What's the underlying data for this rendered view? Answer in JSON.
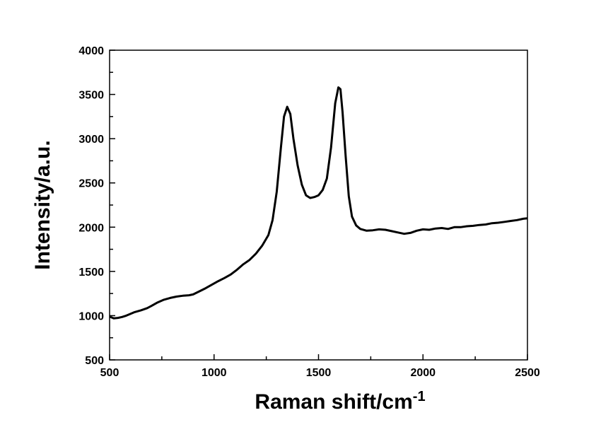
{
  "chart_data": {
    "type": "line",
    "xlabel": "Raman shift/cm",
    "xlabel_superscript": "-1",
    "ylabel": "Intensity/a.u.",
    "xlim": [
      500,
      2500
    ],
    "ylim": [
      500,
      4000
    ],
    "x_ticks": [
      500,
      1000,
      1500,
      2000,
      2500
    ],
    "y_ticks": [
      500,
      1000,
      1500,
      2000,
      2500,
      3000,
      3500,
      4000
    ],
    "grid": false,
    "line_color": "#000000",
    "series": [
      {
        "points": [
          [
            500,
            990
          ],
          [
            520,
            970
          ],
          [
            540,
            975
          ],
          [
            560,
            985
          ],
          [
            580,
            1000
          ],
          [
            600,
            1020
          ],
          [
            620,
            1040
          ],
          [
            650,
            1060
          ],
          [
            680,
            1085
          ],
          [
            700,
            1110
          ],
          [
            730,
            1150
          ],
          [
            760,
            1180
          ],
          [
            790,
            1200
          ],
          [
            820,
            1215
          ],
          [
            850,
            1225
          ],
          [
            880,
            1230
          ],
          [
            900,
            1240
          ],
          [
            930,
            1275
          ],
          [
            960,
            1310
          ],
          [
            990,
            1350
          ],
          [
            1020,
            1390
          ],
          [
            1050,
            1425
          ],
          [
            1080,
            1465
          ],
          [
            1110,
            1520
          ],
          [
            1140,
            1580
          ],
          [
            1170,
            1630
          ],
          [
            1200,
            1700
          ],
          [
            1230,
            1790
          ],
          [
            1260,
            1910
          ],
          [
            1280,
            2080
          ],
          [
            1300,
            2400
          ],
          [
            1320,
            2900
          ],
          [
            1335,
            3250
          ],
          [
            1350,
            3360
          ],
          [
            1365,
            3280
          ],
          [
            1380,
            3000
          ],
          [
            1400,
            2700
          ],
          [
            1420,
            2480
          ],
          [
            1440,
            2360
          ],
          [
            1460,
            2330
          ],
          [
            1480,
            2340
          ],
          [
            1500,
            2360
          ],
          [
            1520,
            2420
          ],
          [
            1540,
            2550
          ],
          [
            1560,
            2900
          ],
          [
            1580,
            3400
          ],
          [
            1595,
            3580
          ],
          [
            1605,
            3560
          ],
          [
            1615,
            3300
          ],
          [
            1630,
            2800
          ],
          [
            1645,
            2350
          ],
          [
            1660,
            2120
          ],
          [
            1680,
            2020
          ],
          [
            1700,
            1980
          ],
          [
            1730,
            1960
          ],
          [
            1760,
            1965
          ],
          [
            1790,
            1975
          ],
          [
            1820,
            1970
          ],
          [
            1850,
            1955
          ],
          [
            1880,
            1940
          ],
          [
            1910,
            1925
          ],
          [
            1940,
            1935
          ],
          [
            1970,
            1960
          ],
          [
            2000,
            1975
          ],
          [
            2030,
            1970
          ],
          [
            2060,
            1985
          ],
          [
            2090,
            1990
          ],
          [
            2120,
            1980
          ],
          [
            2150,
            2000
          ],
          [
            2180,
            2000
          ],
          [
            2210,
            2010
          ],
          [
            2240,
            2015
          ],
          [
            2270,
            2025
          ],
          [
            2300,
            2030
          ],
          [
            2330,
            2045
          ],
          [
            2360,
            2050
          ],
          [
            2390,
            2060
          ],
          [
            2420,
            2070
          ],
          [
            2450,
            2080
          ],
          [
            2480,
            2095
          ],
          [
            2500,
            2100
          ]
        ]
      }
    ]
  }
}
